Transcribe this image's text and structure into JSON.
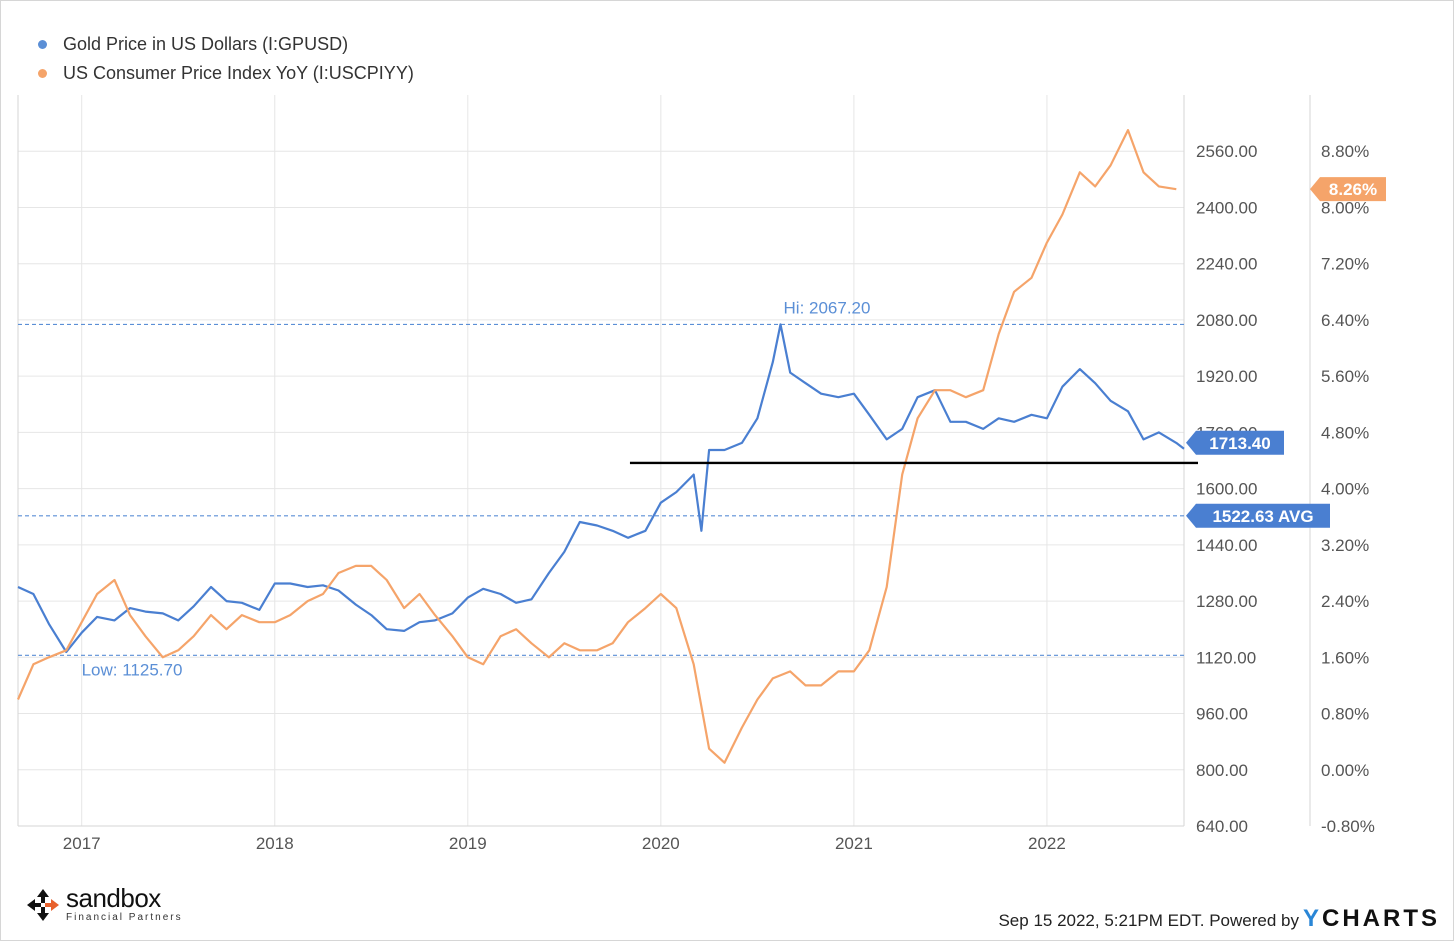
{
  "legend": [
    {
      "label": "Gold Price in US Dollars (I:GPUSD)",
      "color": "#5b8fd6"
    },
    {
      "label": "US Consumer Price Index YoY (I:USCPIYY)",
      "color": "#f5a46a"
    }
  ],
  "chart_data": {
    "type": "line",
    "x_axis": {
      "ticks": [
        "2017",
        "2018",
        "2019",
        "2020",
        "2021",
        "2022"
      ],
      "range": [
        2016.67,
        2022.71
      ]
    },
    "y_left": {
      "ticks": [
        "2560.00",
        "2400.00",
        "2240.00",
        "2080.00",
        "1920.00",
        "1760.00",
        "1600.00",
        "1440.00",
        "1280.00",
        "1120.00",
        "960.00",
        "800.00",
        "640.00"
      ],
      "range": [
        640,
        2720
      ]
    },
    "y_right": {
      "ticks": [
        "8.80%",
        "8.00%",
        "7.20%",
        "6.40%",
        "5.60%",
        "4.80%",
        "4.00%",
        "3.20%",
        "2.40%",
        "1.60%",
        "0.80%",
        "0.00%",
        "-0.80%"
      ],
      "range": [
        -0.8,
        9.6
      ]
    },
    "grid": true,
    "legend_position": "top-left",
    "series": [
      {
        "name": "Gold Price in US Dollars (I:GPUSD)",
        "axis": "left",
        "color": "#4a7fd1",
        "x": [
          2016.67,
          2016.75,
          2016.83,
          2016.92,
          2017.0,
          2017.08,
          2017.17,
          2017.25,
          2017.33,
          2017.42,
          2017.5,
          2017.58,
          2017.67,
          2017.75,
          2017.83,
          2017.92,
          2018.0,
          2018.08,
          2018.17,
          2018.25,
          2018.33,
          2018.42,
          2018.5,
          2018.58,
          2018.67,
          2018.75,
          2018.83,
          2018.92,
          2019.0,
          2019.08,
          2019.17,
          2019.25,
          2019.33,
          2019.42,
          2019.5,
          2019.58,
          2019.67,
          2019.75,
          2019.83,
          2019.92,
          2020.0,
          2020.08,
          2020.17,
          2020.21,
          2020.25,
          2020.33,
          2020.42,
          2020.5,
          2020.58,
          2020.62,
          2020.67,
          2020.75,
          2020.83,
          2020.92,
          2021.0,
          2021.08,
          2021.17,
          2021.25,
          2021.33,
          2021.42,
          2021.5,
          2021.58,
          2021.67,
          2021.75,
          2021.83,
          2021.92,
          2022.0,
          2022.08,
          2022.17,
          2022.25,
          2022.33,
          2022.42,
          2022.5,
          2022.58,
          2022.67,
          2022.71
        ],
        "values": [
          1320,
          1300,
          1215,
          1135,
          1190,
          1235,
          1225,
          1260,
          1250,
          1245,
          1225,
          1265,
          1320,
          1280,
          1275,
          1255,
          1330,
          1330,
          1320,
          1325,
          1310,
          1270,
          1240,
          1200,
          1195,
          1220,
          1225,
          1245,
          1290,
          1315,
          1300,
          1275,
          1285,
          1360,
          1420,
          1505,
          1495,
          1480,
          1460,
          1480,
          1560,
          1590,
          1640,
          1480,
          1710,
          1710,
          1730,
          1800,
          1960,
          2067.2,
          1930,
          1900,
          1870,
          1860,
          1870,
          1810,
          1740,
          1770,
          1860,
          1880,
          1790,
          1790,
          1770,
          1800,
          1790,
          1810,
          1800,
          1890,
          1940,
          1900,
          1850,
          1820,
          1740,
          1760,
          1730,
          1713.4
        ]
      },
      {
        "name": "US Consumer Price Index YoY (I:USCPIYY)",
        "axis": "right",
        "color": "#f5a46a",
        "x": [
          2016.67,
          2016.75,
          2016.83,
          2016.92,
          2017.08,
          2017.17,
          2017.25,
          2017.33,
          2017.42,
          2017.5,
          2017.58,
          2017.67,
          2017.75,
          2017.83,
          2017.92,
          2018.0,
          2018.08,
          2018.17,
          2018.25,
          2018.33,
          2018.42,
          2018.5,
          2018.58,
          2018.67,
          2018.75,
          2018.83,
          2018.92,
          2019.0,
          2019.08,
          2019.17,
          2019.25,
          2019.33,
          2019.42,
          2019.5,
          2019.58,
          2019.67,
          2019.75,
          2019.83,
          2019.92,
          2020.0,
          2020.08,
          2020.17,
          2020.25,
          2020.33,
          2020.42,
          2020.5,
          2020.58,
          2020.67,
          2020.75,
          2020.83,
          2020.92,
          2021.0,
          2021.08,
          2021.17,
          2021.25,
          2021.33,
          2021.42,
          2021.5,
          2021.58,
          2021.67,
          2021.75,
          2021.83,
          2021.92,
          2022.0,
          2022.08,
          2022.17,
          2022.25,
          2022.33,
          2022.42,
          2022.5,
          2022.58,
          2022.67
        ],
        "values": [
          1.0,
          1.5,
          1.6,
          1.7,
          2.5,
          2.7,
          2.2,
          1.9,
          1.6,
          1.7,
          1.9,
          2.2,
          2.0,
          2.2,
          2.1,
          2.1,
          2.2,
          2.4,
          2.5,
          2.8,
          2.9,
          2.9,
          2.7,
          2.3,
          2.5,
          2.2,
          1.9,
          1.6,
          1.5,
          1.9,
          2.0,
          1.8,
          1.6,
          1.8,
          1.7,
          1.7,
          1.8,
          2.1,
          2.3,
          2.5,
          2.3,
          1.5,
          0.3,
          0.1,
          0.6,
          1.0,
          1.3,
          1.4,
          1.2,
          1.2,
          1.4,
          1.4,
          1.7,
          2.6,
          4.2,
          5.0,
          5.4,
          5.4,
          5.3,
          5.4,
          6.2,
          6.8,
          7.0,
          7.5,
          7.9,
          8.5,
          8.3,
          8.6,
          9.1,
          8.5,
          8.3,
          8.26
        ]
      }
    ],
    "reference_lines": [
      {
        "label": "Hi: 2067.20",
        "value": 2067.2
      },
      {
        "label": "1522.63 AVG",
        "value": 1522.63
      },
      {
        "label": "Low: 1125.70",
        "value": 1125.7
      }
    ],
    "support_line": {
      "value": 1673,
      "x_start": 2019.84
    },
    "last_values": {
      "gold": "1713.40",
      "cpi": "8.26%"
    }
  },
  "footer": {
    "timestamp": "Sep 15 2022, 5:21PM EDT. Powered by",
    "brand_y": "Y",
    "brand_rest": "CHARTS"
  },
  "logo": {
    "name": "sandbox",
    "sub": "Financial Partners"
  }
}
